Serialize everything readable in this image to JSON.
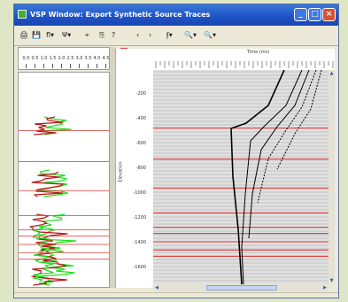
{
  "window": {
    "title": "VSP Window: Export Synthetic Source Traces",
    "controls": {
      "minimize": "_",
      "maximize": "□",
      "close": "×"
    }
  },
  "toolbar": {
    "icons": [
      "print-icon",
      "save-icon",
      "wiggle-icon",
      "trace-icon",
      "zoom-grid-icon",
      "copy-icon",
      "help-icon",
      "prev-icon",
      "next-icon",
      "pick-icon",
      "zoom-in-icon",
      "zoom-out-icon"
    ],
    "glyphs": [
      "🖨",
      "💾",
      "ﬂ▾",
      "Ψ▾",
      "⌖",
      "⎘",
      "?",
      "‹",
      "›",
      "ʄ▾",
      "🔍▾",
      "🔍▾"
    ]
  },
  "log_panel": {
    "ruler_labels": [
      "0.0",
      "0.5",
      "1.0",
      "1.5",
      "2.0",
      "2.5",
      "3.0",
      "3.5",
      "4.0",
      "4.5"
    ]
  },
  "axis": {
    "ylabel": "Elevation",
    "yticks": [
      "-200",
      "-400",
      "-600",
      "-800",
      "-1000",
      "-1200",
      "-1400",
      "-1600"
    ]
  },
  "plot": {
    "top_label": "Time (ms)",
    "marker_depths": [
      -483,
      -733,
      -966,
      -1167,
      -1283,
      -1333,
      -1400,
      -1466,
      -1517
    ],
    "colors": {
      "marker": "#e03030",
      "trace": "#000000",
      "grid": "#bdbdbd",
      "background": "#e0e0e0",
      "log_green": "#1ee01e",
      "log_red": "#b81818"
    }
  }
}
